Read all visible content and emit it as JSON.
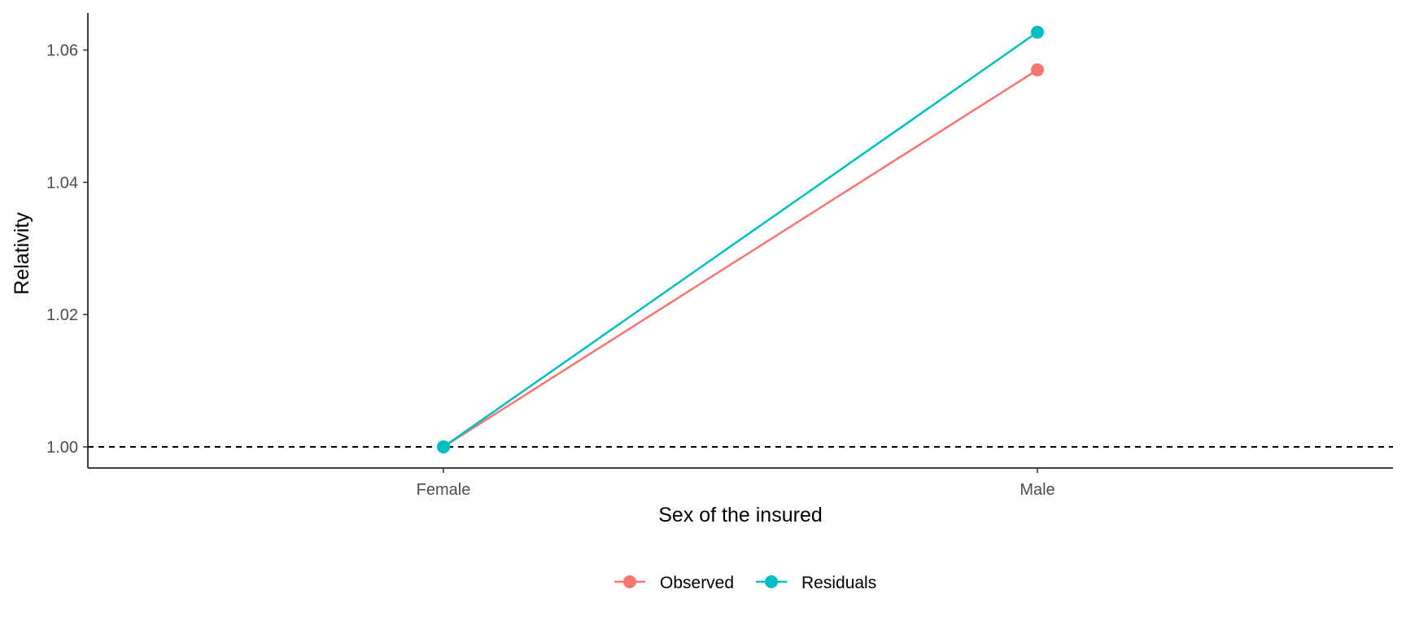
{
  "chart_data": {
    "type": "line",
    "categories": [
      "Female",
      "Male"
    ],
    "series": [
      {
        "name": "Observed",
        "values": [
          1.0,
          1.057
        ],
        "color": "#F8766D"
      },
      {
        "name": "Residuals",
        "values": [
          1.0,
          1.0627
        ],
        "color": "#00BFC4"
      }
    ],
    "xlabel": "Sex of the insured",
    "ylabel": "Relativity",
    "ylim": [
      0.9968,
      1.0656
    ],
    "yticks": [
      1.0,
      1.02,
      1.04,
      1.06
    ],
    "ytick_labels": [
      "1.00",
      "1.02",
      "1.04",
      "1.06"
    ],
    "reference_line": {
      "y": 1.0,
      "style": "dashed",
      "color": "#000000"
    },
    "grid": false,
    "legend": {
      "position": "bottom"
    }
  }
}
